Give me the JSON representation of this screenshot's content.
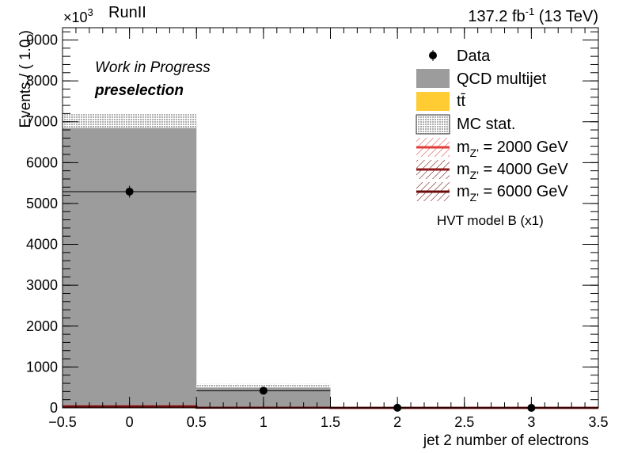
{
  "header": {
    "left": "RunII",
    "right_lumi": "137.2",
    "right_unit": "fb",
    "right_exp": "-1",
    "right_energy": "(13 TeV)"
  },
  "annotations": {
    "status": "Work in Progress",
    "selection": "preselection"
  },
  "legend": {
    "data": "Data",
    "qcd": "QCD multijet",
    "ttbar": "tt̄",
    "mcstat": "MC stat.",
    "signal_prefix": "m",
    "signal_sub": "Z'",
    "signals": [
      "= 2000 GeV",
      "= 4000 GeV",
      "= 6000 GeV"
    ],
    "model": "HVT model B (x1)"
  },
  "colors": {
    "qcd": "#9c9c9c",
    "ttbar": "#ffcc33",
    "sig2000": "#e03c3c",
    "sig4000": "#8b1a1a",
    "sig6000": "#6b0c0c"
  },
  "chart_data": {
    "type": "bar",
    "xlabel": "jet 2 number of electrons",
    "ylabel": "Events / ( 1.0 )",
    "y_multiplier": "×10",
    "y_multiplier_exp": "3",
    "xlim": [
      -0.5,
      3.5
    ],
    "ylim": [
      0,
      9300
    ],
    "x_ticks": [
      -0.5,
      0,
      0.5,
      1,
      1.5,
      2,
      2.5,
      3,
      3.5
    ],
    "x_tick_labels": [
      "−0.5",
      "0",
      "0.5",
      "1",
      "1.5",
      "2",
      "2.5",
      "3",
      "3.5"
    ],
    "y_ticks": [
      0,
      1000,
      2000,
      3000,
      4000,
      5000,
      6000,
      7000,
      8000,
      9000
    ],
    "y_tick_labels": [
      "0",
      "1000",
      "2000",
      "3000",
      "4000",
      "5000",
      "6000",
      "7000",
      "8000",
      "9000"
    ],
    "bins": [
      [
        -0.5,
        0.5
      ],
      [
        0.5,
        1.5
      ],
      [
        1.5,
        2.5
      ],
      [
        2.5,
        3.5
      ]
    ],
    "series": [
      {
        "name": "QCD multijet",
        "kind": "stack",
        "values": [
          7000,
          540,
          2,
          0
        ]
      },
      {
        "name": "tt̄",
        "kind": "stack",
        "values": [
          15,
          3,
          0,
          0
        ]
      },
      {
        "name": "Data",
        "kind": "points",
        "x": [
          0,
          1,
          2,
          3
        ],
        "values": [
          5290,
          420,
          2,
          0
        ]
      },
      {
        "name": "m_Z' = 2000 GeV",
        "kind": "line",
        "values": [
          40,
          5,
          0,
          0
        ]
      },
      {
        "name": "m_Z' = 4000 GeV",
        "kind": "line",
        "values": [
          35,
          4,
          0,
          0
        ]
      },
      {
        "name": "m_Z' = 6000 GeV",
        "kind": "line",
        "values": [
          30,
          3,
          0,
          0
        ]
      }
    ]
  }
}
